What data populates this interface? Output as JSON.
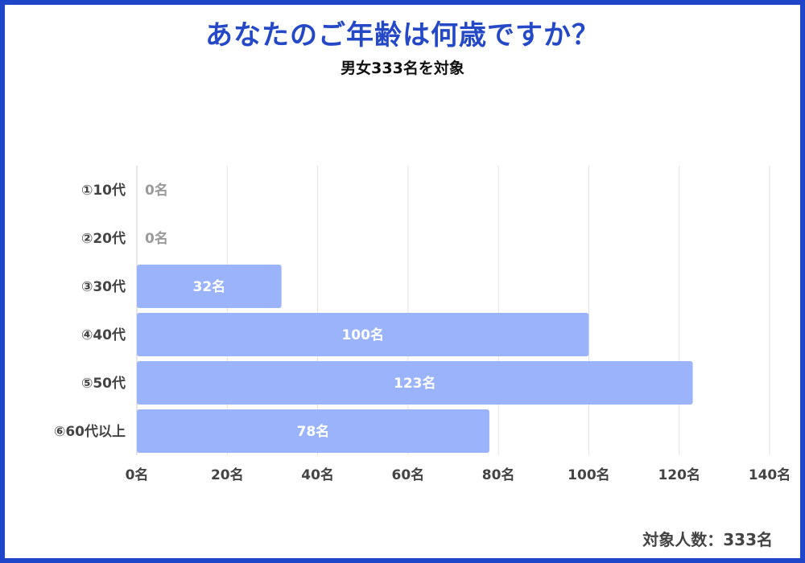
{
  "colors": {
    "frame": "#1f45c9",
    "title": "#2548c7",
    "bar": "#9bb3fb",
    "grid": "#e3e3e3",
    "axis_text": "#444444",
    "label_inside": "#ffffff",
    "label_zero": "#9a9a9a"
  },
  "footer": {
    "note": "対象人数：333名"
  },
  "chart_data": {
    "type": "bar",
    "orientation": "horizontal",
    "title": "あなたのご年齢は何歳ですか？",
    "subtitle": "男女333名を対象",
    "categories": [
      "①10代",
      "②20代",
      "③30代",
      "④40代",
      "⑤50代",
      "⑥60代以上"
    ],
    "values": [
      0,
      0,
      32,
      100,
      123,
      78
    ],
    "data_labels": [
      "0名",
      "0名",
      "32名",
      "100名",
      "123名",
      "78名"
    ],
    "xlim": [
      0,
      140
    ],
    "x_ticks": [
      0,
      20,
      40,
      60,
      80,
      100,
      120,
      140
    ],
    "x_tick_labels": [
      "0名",
      "20名",
      "40名",
      "60名",
      "80名",
      "100名",
      "120名",
      "140名"
    ],
    "xlabel": "",
    "ylabel": "",
    "grid": true
  }
}
